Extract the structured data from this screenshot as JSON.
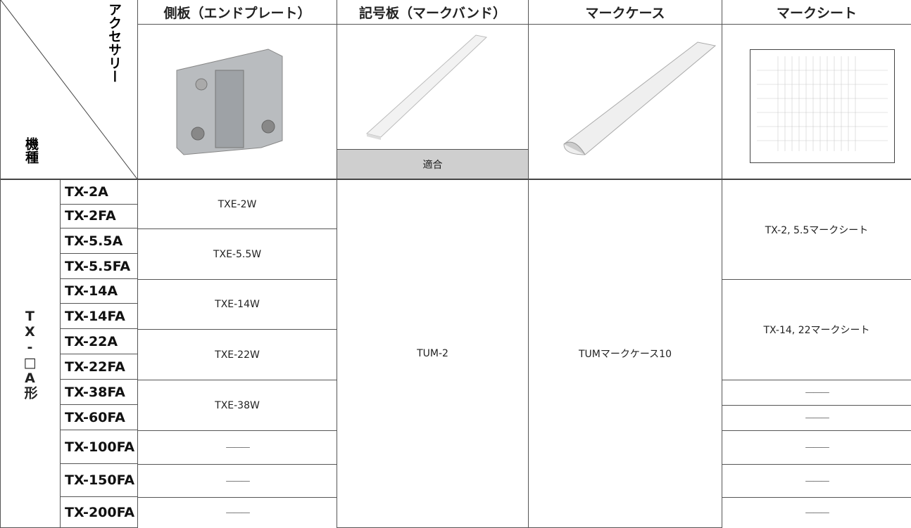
{
  "header": {
    "corner_top": "アクセサリー",
    "corner_bottom": "機種",
    "columns": [
      "側板（エンドプレート）",
      "記号板（マークバンド）",
      "マークケース",
      "マークシート"
    ],
    "fit_label": "適合"
  },
  "group_label": "TX-□A形",
  "models": [
    "TX-2A",
    "TX-2FA",
    "TX-5.5A",
    "TX-5.5FA",
    "TX-14A",
    "TX-14FA",
    "TX-22A",
    "TX-22FA",
    "TX-38FA",
    "TX-60FA",
    "TX-100FA",
    "TX-150FA",
    "TX-200FA"
  ],
  "side_plate": [
    "TXE-2W",
    "TXE-5.5W",
    "TXE-14W",
    "TXE-22W",
    "TXE-38W",
    "———",
    "———",
    "———"
  ],
  "marker_band": "TUM-2",
  "mark_case": "TUMマークケース10",
  "mark_sheet": [
    "TX-2, 5.5マークシート",
    "TX-14, 22マークシート",
    "———",
    "———",
    "———",
    "———",
    "———"
  ]
}
